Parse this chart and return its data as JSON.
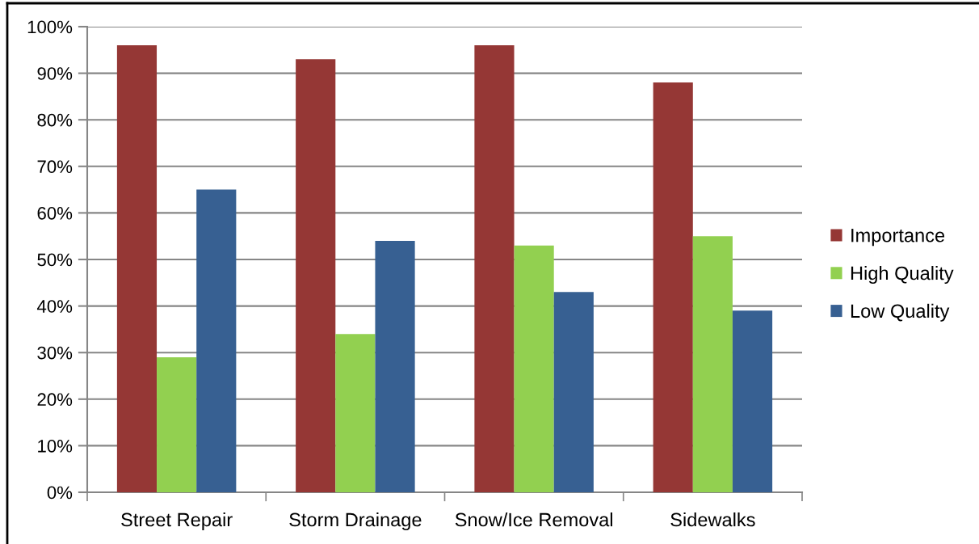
{
  "chart_data": {
    "type": "bar",
    "categories": [
      "Street Repair",
      "Storm Drainage",
      "Snow/Ice Removal",
      "Sidewalks"
    ],
    "series": [
      {
        "name": "Importance",
        "color": "#953735",
        "values": [
          96,
          93,
          96,
          88
        ]
      },
      {
        "name": "High Quality",
        "color": "#92d050",
        "values": [
          29,
          34,
          53,
          55
        ]
      },
      {
        "name": "Low Quality",
        "color": "#376092",
        "values": [
          65,
          54,
          43,
          39
        ]
      }
    ],
    "ylim": [
      0,
      100
    ],
    "yticks": [
      {
        "value": 0,
        "label": "0%"
      },
      {
        "value": 10,
        "label": "10%"
      },
      {
        "value": 20,
        "label": "20%"
      },
      {
        "value": 30,
        "label": "30%"
      },
      {
        "value": 40,
        "label": "40%"
      },
      {
        "value": 50,
        "label": "50%"
      },
      {
        "value": 60,
        "label": "60%"
      },
      {
        "value": 70,
        "label": "70%"
      },
      {
        "value": 80,
        "label": "80%"
      },
      {
        "value": 90,
        "label": "90%"
      },
      {
        "value": 100,
        "label": "100%"
      }
    ],
    "grid": "y",
    "legend": "right"
  }
}
